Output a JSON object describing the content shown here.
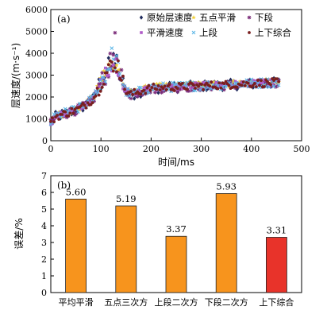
{
  "chart_data": [
    {
      "type": "scatter",
      "panel_label": "(a)",
      "xlabel": "时间/ms",
      "ylabel": "层速度/(m·s⁻¹)",
      "xlim": [
        0,
        500
      ],
      "ylim": [
        0,
        6000
      ],
      "x_ticks": [
        0,
        100,
        200,
        300,
        400,
        500
      ],
      "y_ticks": [
        0,
        1000,
        2000,
        3000,
        4000,
        5000,
        6000
      ],
      "legend_placement": "top-right",
      "grid": false,
      "x_range_of_samples": [
        0,
        455
      ],
      "series": [
        {
          "name": "原始层速度",
          "marker": "diamond",
          "color": "#1f2a5c",
          "trend": [
            [
              0,
              800
            ],
            [
              10,
              1100
            ],
            [
              30,
              1250
            ],
            [
              60,
              1500
            ],
            [
              85,
              1900
            ],
            [
              100,
              2700
            ],
            [
              115,
              3300
            ],
            [
              128,
              3700
            ],
            [
              138,
              3200
            ],
            [
              148,
              2300
            ],
            [
              160,
              2100
            ],
            [
              200,
              2400
            ],
            [
              300,
              2500
            ],
            [
              400,
              2600
            ],
            [
              455,
              2650
            ]
          ],
          "jitter": 230
        },
        {
          "name": "五点平滑",
          "marker": "star",
          "color": "#f2d13a",
          "trend": [
            [
              0,
              850
            ],
            [
              10,
              1150
            ],
            [
              30,
              1280
            ],
            [
              60,
              1520
            ],
            [
              85,
              1950
            ],
            [
              100,
              2750
            ],
            [
              115,
              3350
            ],
            [
              128,
              3600
            ],
            [
              138,
              3150
            ],
            [
              148,
              2300
            ],
            [
              160,
              2150
            ],
            [
              200,
              2450
            ],
            [
              300,
              2550
            ],
            [
              400,
              2650
            ],
            [
              455,
              2700
            ]
          ],
          "jitter": 150
        },
        {
          "name": "下段",
          "marker": "xstar",
          "color": "#7b2d7a",
          "trend": [
            [
              0,
              780
            ],
            [
              10,
              1080
            ],
            [
              30,
              1230
            ],
            [
              60,
              1480
            ],
            [
              85,
              1880
            ],
            [
              100,
              2650
            ],
            [
              115,
              3250
            ],
            [
              128,
              3650
            ],
            [
              138,
              3200
            ],
            [
              148,
              2250
            ],
            [
              160,
              2100
            ],
            [
              200,
              2380
            ],
            [
              300,
              2480
            ],
            [
              400,
              2580
            ],
            [
              455,
              2640
            ]
          ],
          "jitter": 200
        },
        {
          "name": "平滑速度",
          "marker": "square",
          "color": "#b05cc8",
          "trend": [
            [
              0,
              830
            ],
            [
              10,
              1120
            ],
            [
              30,
              1260
            ],
            [
              60,
              1500
            ],
            [
              85,
              1920
            ],
            [
              100,
              2700
            ],
            [
              115,
              3300
            ],
            [
              128,
              3550
            ],
            [
              138,
              3150
            ],
            [
              148,
              2300
            ],
            [
              160,
              2150
            ],
            [
              200,
              2420
            ],
            [
              300,
              2520
            ],
            [
              400,
              2620
            ],
            [
              455,
              2680
            ]
          ],
          "jitter": 140
        },
        {
          "name": "上段",
          "marker": "x",
          "color": "#5fb8e8",
          "trend": [
            [
              0,
              820
            ],
            [
              10,
              1130
            ],
            [
              30,
              1270
            ],
            [
              60,
              1510
            ],
            [
              85,
              1930
            ],
            [
              100,
              2720
            ],
            [
              115,
              3320
            ],
            [
              128,
              3620
            ],
            [
              138,
              3180
            ],
            [
              148,
              2280
            ],
            [
              160,
              2120
            ],
            [
              200,
              2420
            ],
            [
              300,
              2520
            ],
            [
              400,
              2620
            ],
            [
              455,
              2680
            ]
          ],
          "jitter": 210
        },
        {
          "name": "上下综合",
          "marker": "circle",
          "color": "#7a1f1f",
          "trend": [
            [
              0,
              810
            ],
            [
              10,
              1110
            ],
            [
              30,
              1250
            ],
            [
              60,
              1500
            ],
            [
              85,
              1910
            ],
            [
              100,
              2690
            ],
            [
              115,
              3290
            ],
            [
              128,
              3600
            ],
            [
              138,
              3170
            ],
            [
              148,
              2290
            ],
            [
              160,
              2130
            ],
            [
              200,
              2410
            ],
            [
              300,
              2510
            ],
            [
              400,
              2610
            ],
            [
              455,
              2670
            ]
          ],
          "jitter": 180
        }
      ]
    },
    {
      "type": "bar",
      "panel_label": "(b)",
      "ylabel": "误差/%",
      "ylim": [
        0,
        7
      ],
      "y_ticks": [
        0,
        1,
        2,
        3,
        4,
        5,
        6,
        7
      ],
      "categories": [
        "平均平滑",
        "五点三次方",
        "上段二次方",
        "下段二次方",
        "上下综合"
      ],
      "values": [
        5.6,
        5.19,
        3.37,
        5.93,
        3.31
      ],
      "value_labels": [
        "5.60",
        "5.19",
        "3.37",
        "5.93",
        "3.31"
      ],
      "colors": [
        "#f7941d",
        "#f7941d",
        "#f7941d",
        "#f7941d",
        "#e8332a"
      ]
    }
  ]
}
